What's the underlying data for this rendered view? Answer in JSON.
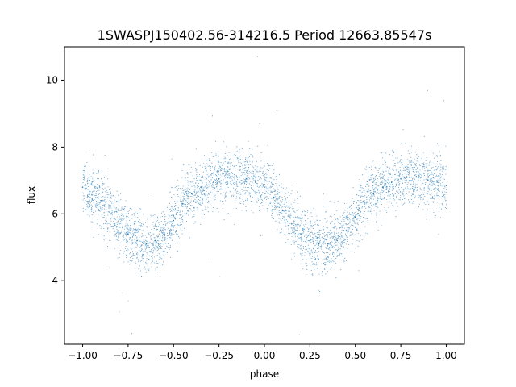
{
  "chart_data": {
    "type": "scatter",
    "title": "1SWASPJ150402.56-314216.5 Period 12663.85547s",
    "xlabel": "phase",
    "ylabel": "flux",
    "xlim": [
      -1.1,
      1.1
    ],
    "ylim": [
      2.1,
      11.0
    ],
    "xticks": [
      -1.0,
      -0.75,
      -0.5,
      -0.25,
      0.0,
      0.25,
      0.5,
      0.75,
      1.0
    ],
    "xtick_labels": [
      "−1.00",
      "−0.75",
      "−0.50",
      "−0.25",
      "0.00",
      "0.25",
      "0.50",
      "0.75",
      "1.00"
    ],
    "yticks": [
      4,
      6,
      8,
      10
    ],
    "ytick_labels": [
      "4",
      "6",
      "8",
      "10"
    ],
    "grid": false,
    "legend": "none",
    "marker_color": "#1f77b4",
    "series": [
      {
        "x": [
          -1.0,
          -0.9,
          -0.8,
          -0.75,
          -0.7,
          -0.65,
          -0.6,
          -0.55,
          -0.5,
          -0.45,
          -0.4,
          -0.35,
          -0.3,
          -0.25,
          -0.2,
          -0.15,
          -0.1,
          -0.05,
          0.0,
          0.05,
          0.1,
          0.15,
          0.2,
          0.25,
          0.3,
          0.35,
          0.4,
          0.45,
          0.5,
          0.55,
          0.6,
          0.65,
          0.7,
          0.75,
          0.8,
          0.85,
          0.9,
          0.95,
          1.0
        ],
        "y": [
          6.8,
          6.4,
          5.7,
          5.4,
          5.2,
          5.1,
          5.2,
          5.4,
          5.8,
          6.3,
          6.6,
          6.8,
          6.95,
          7.05,
          7.1,
          7.1,
          7.05,
          6.95,
          6.8,
          6.5,
          6.1,
          5.7,
          5.4,
          5.2,
          5.1,
          5.1,
          5.2,
          5.5,
          5.9,
          6.3,
          6.6,
          6.8,
          6.95,
          7.05,
          7.1,
          7.1,
          7.0,
          6.95,
          6.85
        ]
      }
    ]
  }
}
